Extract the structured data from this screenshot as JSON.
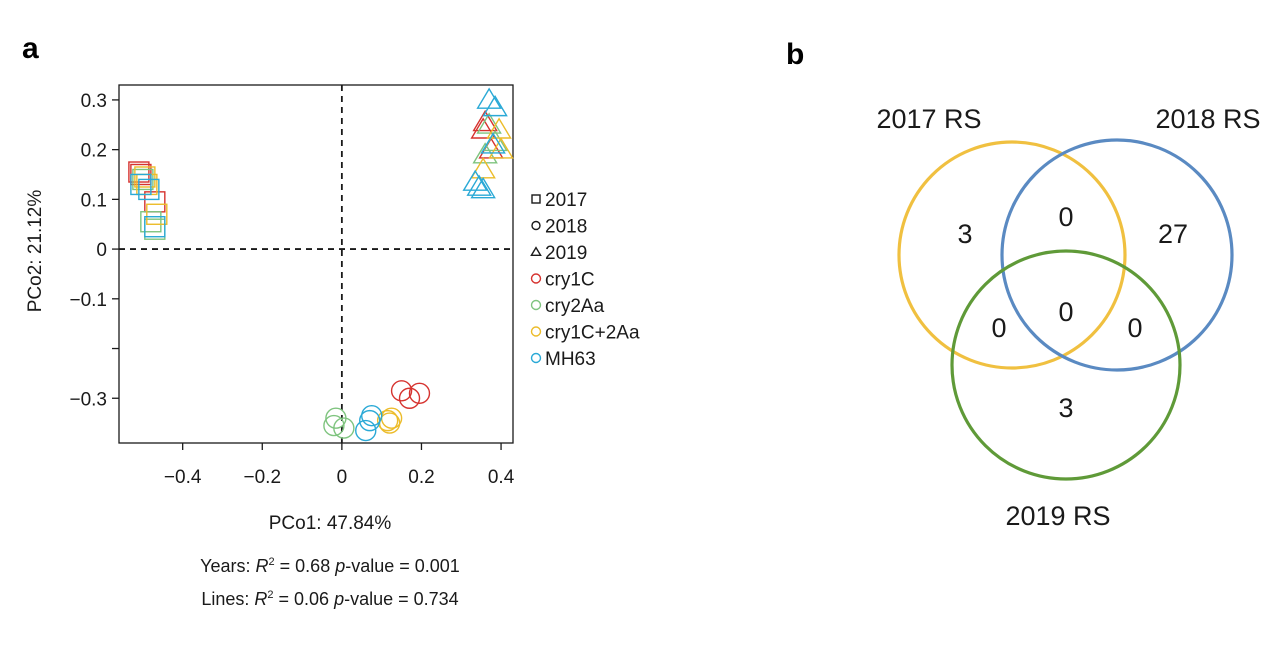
{
  "panel_a": {
    "letter": "a"
  },
  "panel_b": {
    "letter": "b"
  },
  "chart_data": [
    {
      "type": "scatter",
      "xlabel": "PCo1: 47.84%",
      "ylabel": "PCo2: 21.12%",
      "xlim": [
        -0.56,
        0.43
      ],
      "ylim": [
        -0.39,
        0.33
      ],
      "x_ticks": [
        -0.4,
        -0.2,
        0,
        0.2,
        0.4
      ],
      "x_tick_labels": [
        "−0.4",
        "−0.2",
        "0",
        "0.2",
        "0.4"
      ],
      "y_ticks": [
        0.3,
        0.2,
        0.1,
        0,
        -0.1,
        -0.2,
        -0.3
      ],
      "y_tick_labels": [
        "0.3",
        "0.2",
        "0.1",
        "0",
        "−0.1",
        "",
        "−0.3"
      ],
      "zero_lines": "dashed",
      "legend_position": "right",
      "legend": {
        "years": [
          {
            "label": "2017",
            "marker": "square"
          },
          {
            "label": "2018",
            "marker": "circle"
          },
          {
            "label": "2019",
            "marker": "triangle"
          }
        ],
        "lines": [
          {
            "label": "cry1C",
            "color": "#d6332f"
          },
          {
            "label": "cry2Aa",
            "color": "#7fc47f"
          },
          {
            "label": "cry1C+2Aa",
            "color": "#ecbc2a"
          },
          {
            "label": "MH63",
            "color": "#2aa9d6"
          }
        ]
      },
      "series": [
        {
          "year": "2017",
          "line": "cry1C",
          "points": [
            [
              -0.51,
              0.155
            ],
            [
              -0.47,
              0.095
            ],
            [
              -0.505,
              0.15
            ]
          ]
        },
        {
          "year": "2017",
          "line": "cry2Aa",
          "points": [
            [
              -0.48,
              0.055
            ],
            [
              -0.47,
              0.04
            ],
            [
              -0.5,
              0.14
            ]
          ]
        },
        {
          "year": "2017",
          "line": "cry1C+2Aa",
          "points": [
            [
              -0.495,
              0.145
            ],
            [
              -0.49,
              0.13
            ],
            [
              -0.465,
              0.07
            ]
          ]
        },
        {
          "year": "2017",
          "line": "MH63",
          "points": [
            [
              -0.505,
              0.13
            ],
            [
              -0.47,
              0.045
            ],
            [
              -0.485,
              0.12
            ]
          ]
        },
        {
          "year": "2018",
          "line": "cry1C",
          "points": [
            [
              0.15,
              -0.285
            ],
            [
              0.195,
              -0.29
            ],
            [
              0.17,
              -0.3
            ]
          ]
        },
        {
          "year": "2018",
          "line": "cry2Aa",
          "points": [
            [
              -0.015,
              -0.34
            ],
            [
              -0.02,
              -0.355
            ],
            [
              0.005,
              -0.36
            ]
          ]
        },
        {
          "year": "2018",
          "line": "cry1C+2Aa",
          "points": [
            [
              0.115,
              -0.345
            ],
            [
              0.12,
              -0.35
            ],
            [
              0.125,
              -0.34
            ]
          ]
        },
        {
          "year": "2018",
          "line": "MH63",
          "points": [
            [
              0.075,
              -0.335
            ],
            [
              0.07,
              -0.345
            ],
            [
              0.06,
              -0.365
            ]
          ]
        },
        {
          "year": "2019",
          "line": "cry1C",
          "points": [
            [
              0.355,
              0.24
            ],
            [
              0.375,
              0.2
            ],
            [
              0.36,
              0.255
            ]
          ]
        },
        {
          "year": "2019",
          "line": "cry2Aa",
          "points": [
            [
              0.385,
              0.215
            ],
            [
              0.37,
              0.25
            ],
            [
              0.36,
              0.19
            ]
          ]
        },
        {
          "year": "2019",
          "line": "cry1C+2Aa",
          "points": [
            [
              0.395,
              0.24
            ],
            [
              0.4,
              0.2
            ],
            [
              0.355,
              0.16
            ]
          ]
        },
        {
          "year": "2019",
          "line": "MH63",
          "points": [
            [
              0.37,
              0.3
            ],
            [
              0.385,
              0.285
            ],
            [
              0.335,
              0.135
            ],
            [
              0.355,
              0.12
            ],
            [
              0.345,
              0.125
            ],
            [
              0.38,
              0.21
            ]
          ]
        }
      ],
      "annotations": [
        {
          "label": "Years:",
          "r2_symbol": "R",
          "r2_sup": "2",
          "r2_text": "= 0.68",
          "p_symbol": "p",
          "p_text": "-value = 0.001"
        },
        {
          "label": "Lines:",
          "r2_symbol": "R",
          "r2_sup": "2",
          "r2_text": "= 0.06",
          "p_symbol": "p",
          "p_text": "-value = 0.734"
        }
      ]
    },
    {
      "type": "venn",
      "sets": [
        {
          "label": "2017 RS",
          "color": "#f0c040"
        },
        {
          "label": "2018 RS",
          "color": "#5a8ac2"
        },
        {
          "label": "2019 RS",
          "color": "#5f9a38"
        }
      ],
      "regions": {
        "only_2017": 3,
        "only_2018": 27,
        "only_2019": 3,
        "2017_2018": 0,
        "2017_2019": 0,
        "2018_2019": 0,
        "all": 0
      }
    }
  ]
}
